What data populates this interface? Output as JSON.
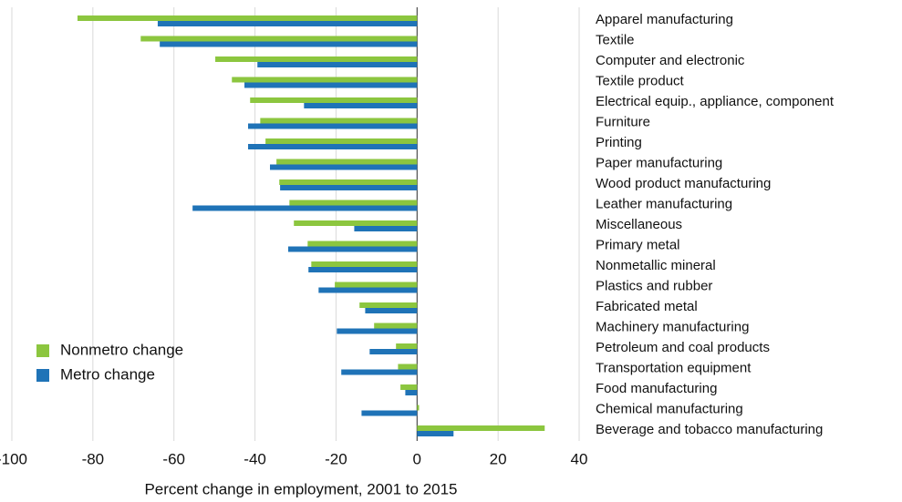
{
  "chart_data": {
    "type": "bar",
    "orientation": "horizontal",
    "x_label": "Percent change in employment, 2001 to 2015",
    "categories": [
      "Apparel manufacturing",
      "Textile",
      "Computer and electronic",
      "Textile product",
      "Electrical equip., appliance, component",
      "Furniture",
      "Printing",
      "Paper manufacturing",
      "Wood product manufacturing",
      "Leather manufacturing",
      "Miscellaneous",
      "Primary metal",
      "Nonmetallic mineral",
      "Plastics and rubber",
      "Fabricated metal",
      "Machinery manufacturing",
      "Petroleum and coal products",
      "Transportation equipment",
      "Food manufacturing",
      "Chemical manufacturing",
      "Beverage and tobacco manufacturing"
    ],
    "series": [
      {
        "name": "Nonmetro change",
        "color": "#8cc63f",
        "values": [
          -83.8,
          -68.2,
          -49.8,
          -45.7,
          -41.2,
          -38.7,
          -37.4,
          -34.7,
          -34,
          -31.5,
          -30.4,
          -27,
          -26.1,
          -20.3,
          -14.2,
          -10.6,
          -5.2,
          -4.7,
          -4.1,
          0.5,
          31.5
        ]
      },
      {
        "name": "Metro change",
        "color": "#1f73b7",
        "values": [
          -64,
          -63.5,
          -39.4,
          -42.6,
          -27.9,
          -41.7,
          -41.7,
          -36.3,
          -33.8,
          -55.4,
          -15.5,
          -31.8,
          -26.8,
          -24.3,
          -12.8,
          -19.8,
          -11.7,
          -18.7,
          -2.9,
          -13.7,
          9
        ]
      }
    ],
    "xlim": [
      -100,
      40
    ],
    "xticks": [
      -100,
      -80,
      -60,
      -40,
      -20,
      0,
      20,
      40
    ],
    "grid": true,
    "legend": "bottom-left"
  }
}
